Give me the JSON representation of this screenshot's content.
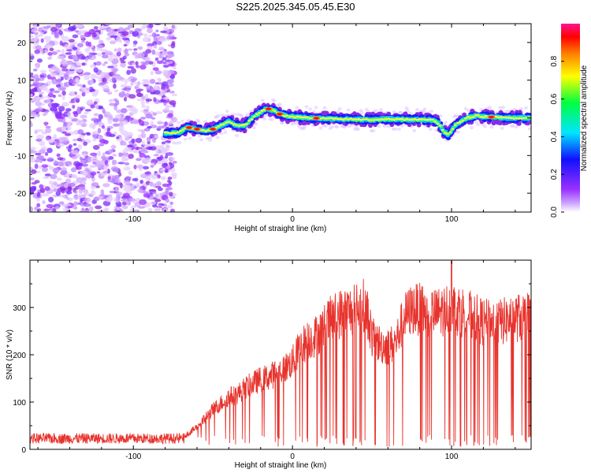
{
  "title": "S225.2025.345.05.45.E30",
  "chart_data": [
    {
      "type": "heatmap",
      "xlabel": "Height of straight line (km)",
      "ylabel": "Frequency (Hz)",
      "xlim": [
        -165,
        150
      ],
      "ylim": [
        -25,
        25
      ],
      "x_ticks": [
        -100,
        0,
        100
      ],
      "y_ticks": [
        -20,
        -10,
        0,
        10,
        20
      ],
      "colorbar": {
        "label": "Normalized spectral amplitude",
        "range": [
          0,
          1
        ],
        "ticks": [
          "0.0",
          "0.2",
          "0.4",
          "0.6",
          "0.8"
        ],
        "colors": [
          "#ffffff",
          "#9b30ff",
          "#1010ff",
          "#00e5ff",
          "#00ff40",
          "#ffff00",
          "#ff8000",
          "#ff0000",
          "#ff1493"
        ]
      },
      "noise_region_x": [
        -165,
        -80
      ],
      "ridge": {
        "x": [
          -80,
          -72,
          -66,
          -60,
          -55,
          -50,
          -45,
          -40,
          -35,
          -30,
          -25,
          -20,
          -16,
          -12,
          -8,
          -4,
          0,
          10,
          20,
          30,
          40,
          50,
          60,
          70,
          80,
          88,
          92,
          95,
          98,
          102,
          106,
          110,
          115,
          125,
          135,
          150
        ],
        "y": [
          -4,
          -4,
          -2.5,
          -3,
          -3.5,
          -3,
          -2,
          -1,
          -2,
          -2,
          0,
          1.5,
          2.5,
          2,
          1,
          0.5,
          0.3,
          0,
          -0.2,
          -0.3,
          -0.4,
          -0.5,
          -0.3,
          -0.4,
          -0.5,
          -0.6,
          -1.5,
          -3.5,
          -4.5,
          -2,
          -1,
          0,
          0.5,
          0.2,
          0,
          0
        ]
      },
      "hot_spots_x": [
        -65,
        -60,
        -50,
        -15,
        -8,
        15,
        125
      ]
    },
    {
      "type": "line",
      "xlabel": "Height of straight line (km)",
      "ylabel": "SNR (10 * v/v)",
      "xlim": [
        -165,
        150
      ],
      "ylim": [
        0,
        400
      ],
      "x_ticks": [
        -100,
        0,
        100
      ],
      "y_ticks": [
        0,
        100,
        200,
        300
      ],
      "series": [
        {
          "color": "#e8332d",
          "envelope_x": [
            -165,
            -120,
            -80,
            -68,
            -62,
            -55,
            -50,
            -45,
            -40,
            -35,
            -30,
            -25,
            -20,
            -15,
            -10,
            -5,
            0,
            5,
            10,
            15,
            20,
            25,
            30,
            35,
            40,
            45,
            48,
            50,
            55,
            60,
            65,
            70,
            75,
            80,
            90,
            100,
            110,
            120,
            130,
            140,
            150
          ],
          "envelope_y": [
            20,
            22,
            22,
            30,
            45,
            70,
            90,
            105,
            120,
            125,
            140,
            150,
            160,
            165,
            175,
            185,
            200,
            235,
            250,
            260,
            280,
            300,
            310,
            315,
            320,
            330,
            300,
            255,
            240,
            235,
            245,
            300,
            320,
            320,
            310,
            325,
            310,
            290,
            290,
            300,
            305
          ],
          "peak_x": 100,
          "peak_y": 398
        }
      ]
    }
  ]
}
